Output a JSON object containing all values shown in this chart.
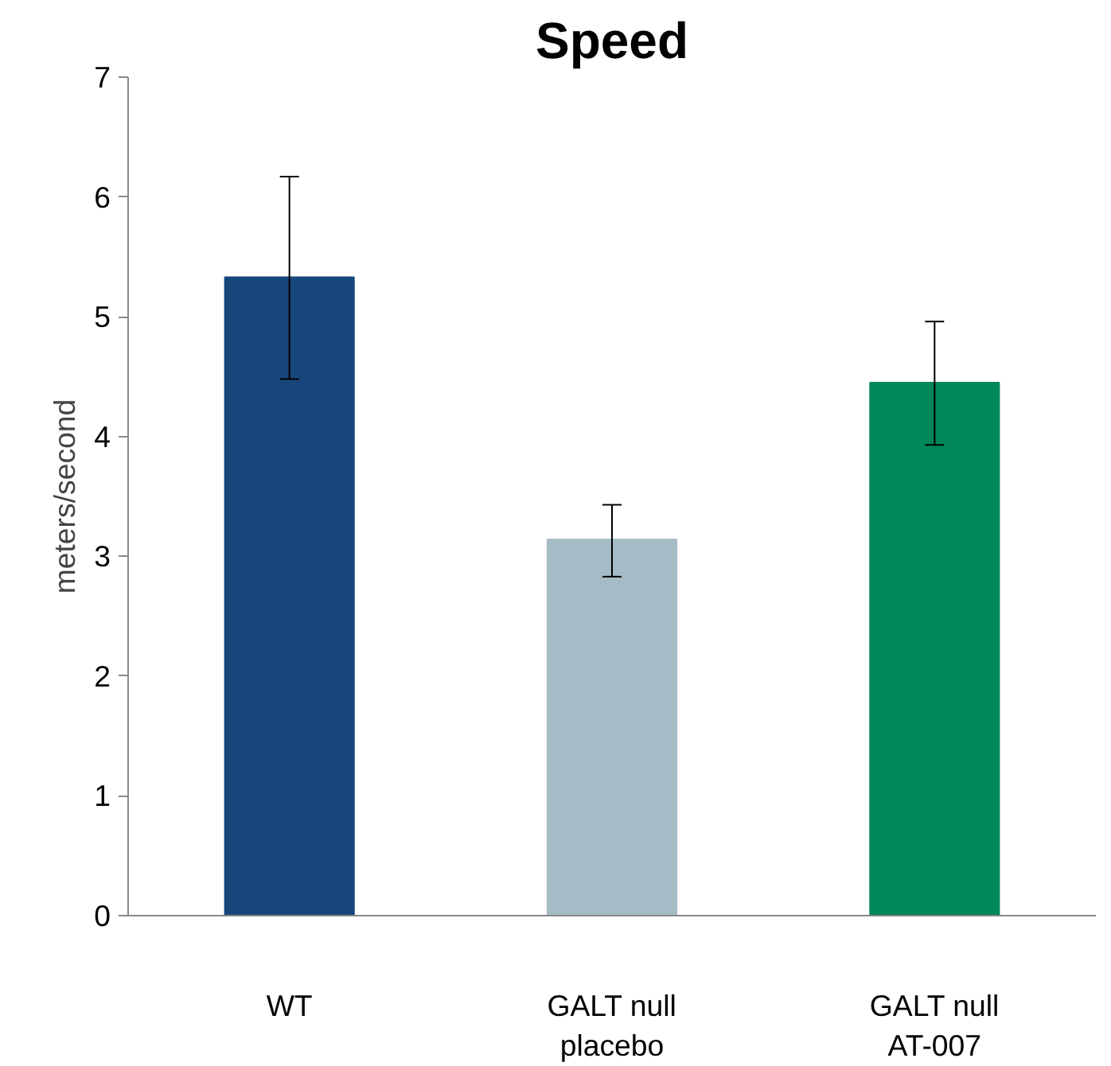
{
  "chart_data": {
    "type": "bar",
    "title": "Speed",
    "ylabel": "meters/second",
    "categories": [
      "WT",
      "GALT null\nplacebo",
      "GALT null\nAT-007"
    ],
    "values": [
      5.33,
      3.14,
      4.45
    ],
    "colors": [
      "#17477a",
      "#a5bcc6",
      "#00875a"
    ],
    "errors": [
      [
        4.48,
        6.17
      ],
      [
        2.83,
        3.43
      ],
      [
        3.93,
        4.96
      ]
    ],
    "ylim": [
      0,
      7
    ],
    "yticks": [
      0,
      1,
      2,
      3,
      4,
      5,
      6,
      7
    ],
    "grid": false
  }
}
